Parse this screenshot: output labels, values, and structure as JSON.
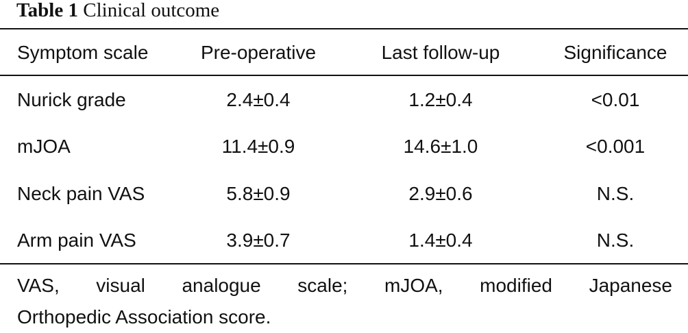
{
  "caption": {
    "number": "Table 1",
    "title": "Clinical outcome"
  },
  "table": {
    "columns": [
      "Symptom scale",
      "Pre-operative",
      "Last follow-up",
      "Significance"
    ],
    "rows": [
      [
        "Nurick grade",
        "2.4±0.4",
        "1.2±0.4",
        "<0.01"
      ],
      [
        "mJOA",
        "11.4±0.9",
        "14.6±1.0",
        "<0.001"
      ],
      [
        "Neck pain VAS",
        "5.8±0.9",
        "2.9±0.6",
        "N.S."
      ],
      [
        "Arm pain VAS",
        "3.9±0.7",
        "1.4±0.4",
        "N.S."
      ]
    ]
  },
  "footnote": {
    "line1": "VAS, visual analogue scale; mJOA, modified Japanese",
    "line2": "Orthopedic Association score."
  }
}
